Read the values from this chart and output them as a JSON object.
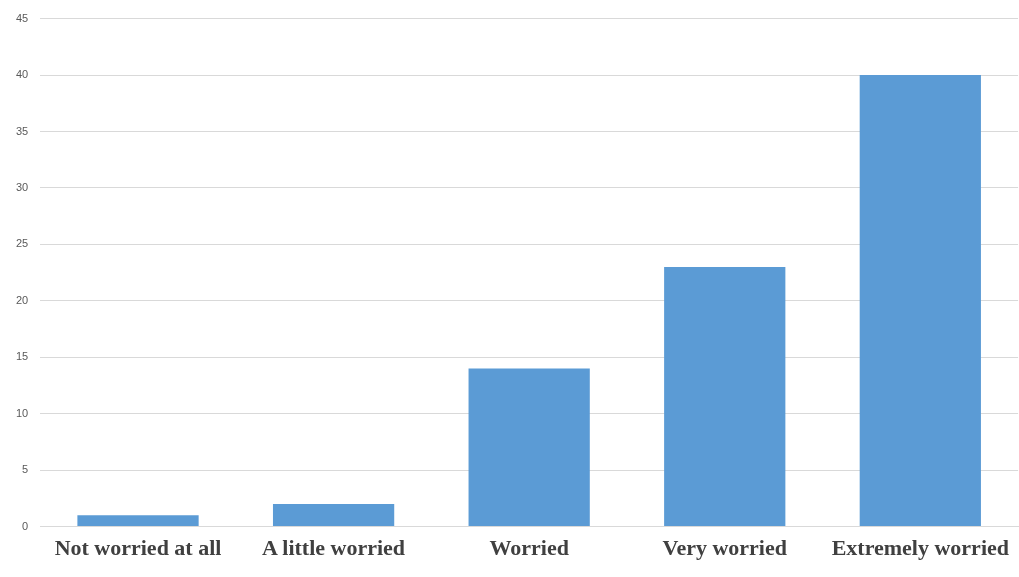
{
  "chart_data": {
    "type": "bar",
    "categories": [
      "Not worried at all",
      "A little worried",
      "Worried",
      "Very worried",
      "Extremely worried"
    ],
    "values": [
      1,
      2,
      14,
      23,
      40
    ],
    "color": "#5b9bd5",
    "ylim": [
      0,
      45
    ],
    "yticks": [
      0,
      5,
      10,
      15,
      20,
      25,
      30,
      35,
      40,
      45
    ],
    "grid": "y",
    "legend": false
  }
}
